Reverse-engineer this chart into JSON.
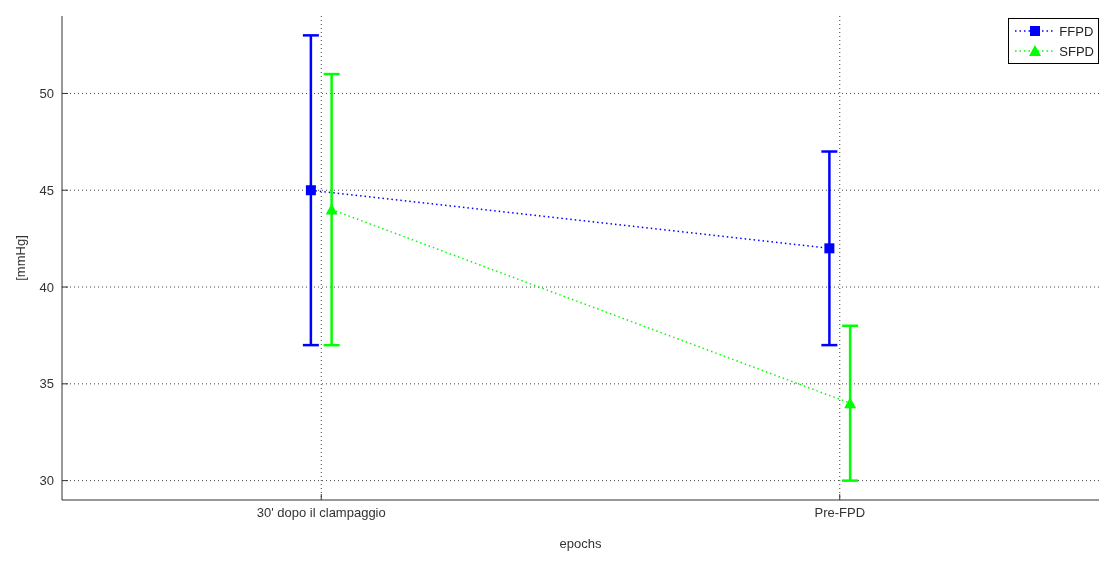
{
  "chart_data": {
    "type": "line",
    "xlabel": "epochs",
    "ylabel": "[mmHg]",
    "categories": [
      "30' dopo il clampaggio",
      "Pre-FPD"
    ],
    "ylim": [
      29,
      54
    ],
    "yticks": [
      30,
      35,
      40,
      45,
      50
    ],
    "series": [
      {
        "name": "FFPD",
        "color": "#0000ff",
        "values": [
          45,
          42
        ],
        "errors": [
          [
            37,
            53
          ],
          [
            37,
            47
          ]
        ],
        "marker": "square"
      },
      {
        "name": "SFPD",
        "color": "#00ff00",
        "values": [
          44,
          34
        ],
        "errors": [
          [
            37,
            51
          ],
          [
            30,
            38
          ]
        ],
        "marker": "triangle"
      }
    ],
    "line_style": "dotted",
    "grid": true,
    "legend": "top right"
  }
}
